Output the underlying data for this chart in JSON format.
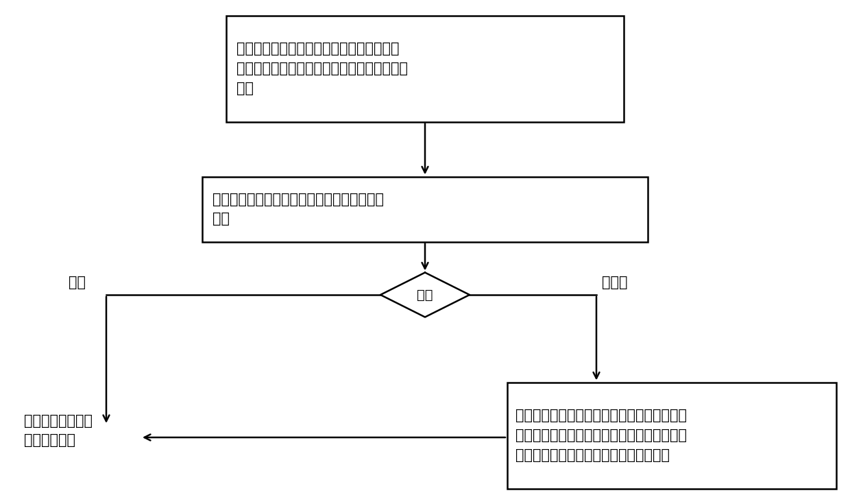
{
  "bg_color": "#ffffff",
  "line_color": "#000000",
  "text_color": "#000000",
  "box1_text": "将训练集中的液化判别指标作为输入层的数\n据，经过隐藏层的处理和非线性变换传向给输\n出层",
  "box2_text": "将经过输出层得到的响应与预设的期望值进行\n比较",
  "diamond_text": "比较",
  "left_label": "相符",
  "right_label": "不相符",
  "box_left_text": "训练停止，生成地\n震液化势模型",
  "box_right_text": "当响应与期望值不符时，计算响应与期望值的\n误差，并从隐藏层向输入层进行反向传播，直\n至输出层得到的响应与预设的期望值相符",
  "font_size": 15,
  "lw": 1.8
}
